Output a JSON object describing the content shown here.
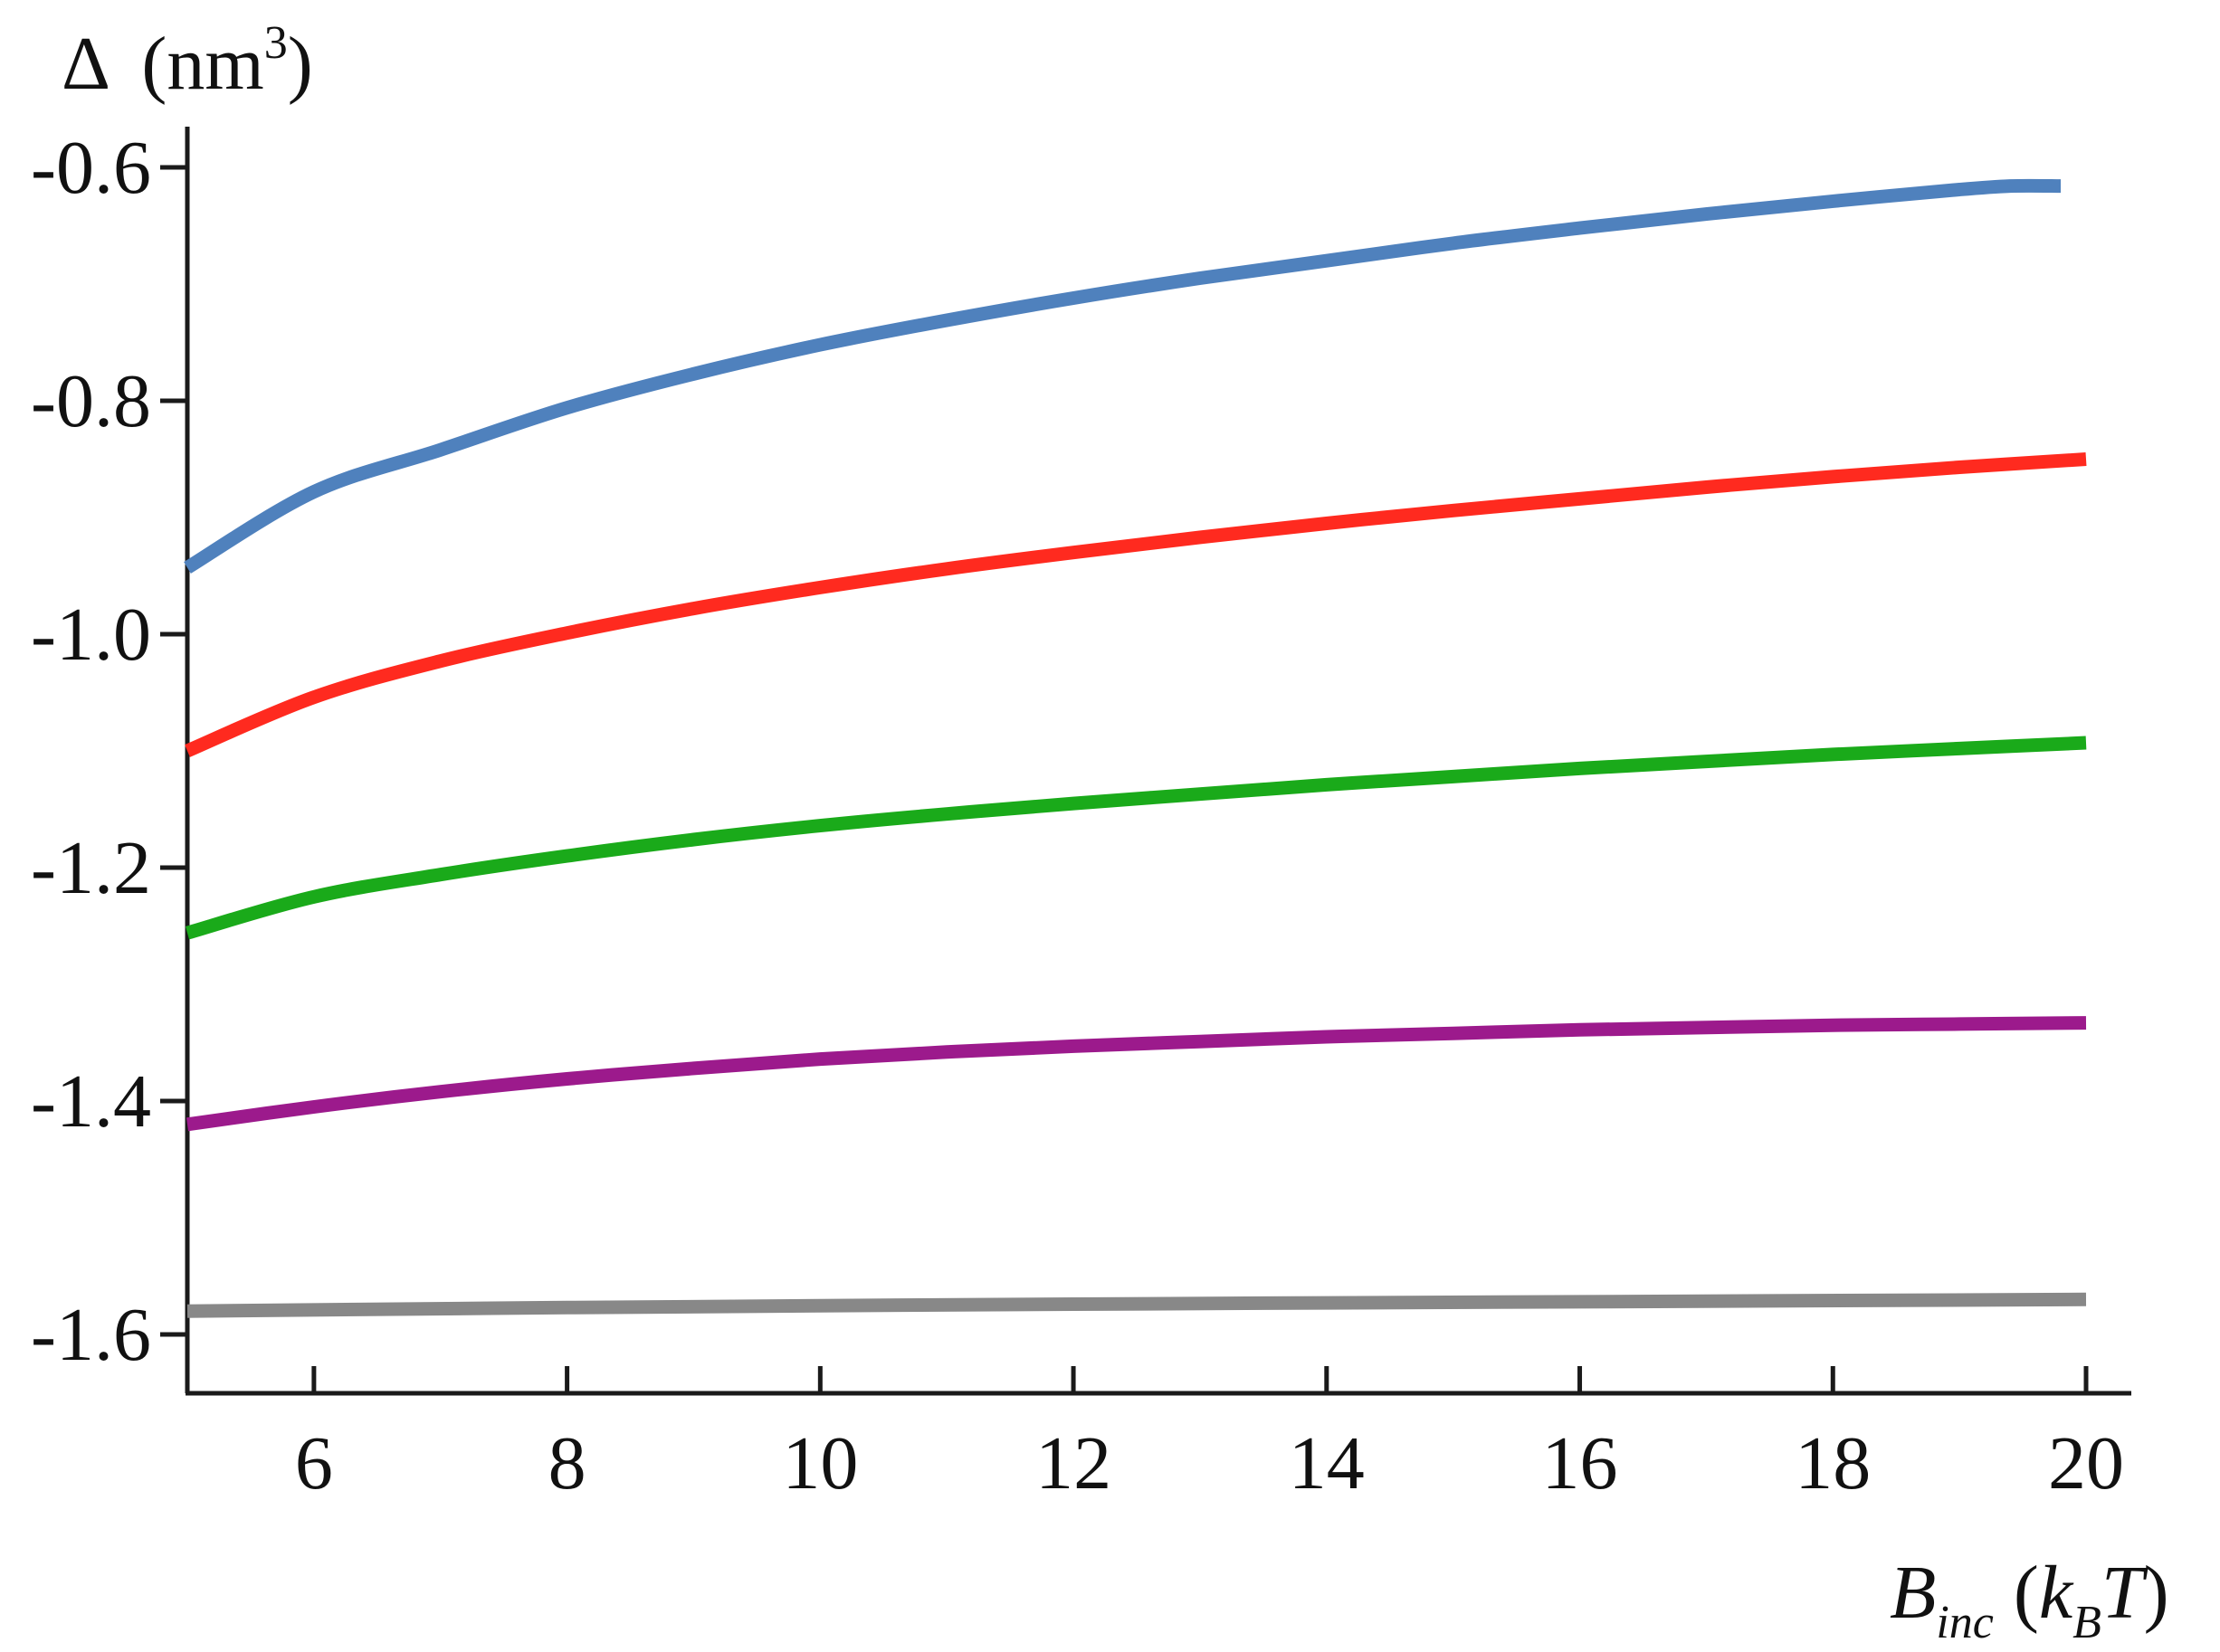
{
  "chart_data": {
    "type": "line",
    "title": "",
    "ylabel": {
      "symbol": "Δ",
      "unit_open": "(nm",
      "unit_sup": "3",
      "unit_close": ")"
    },
    "xlabel": {
      "base": "B",
      "sub": "inc",
      "paren_open": "(",
      "k": "k",
      "k_sub": "B",
      "T": "T",
      "paren_close": ")"
    },
    "xlim": [
      5,
      20
    ],
    "ylim": [
      -1.65,
      -0.57
    ],
    "xticks": [
      6,
      8,
      10,
      12,
      14,
      16,
      18,
      20
    ],
    "xtick_labels": [
      "6",
      "8",
      "10",
      "12",
      "14",
      "16",
      "18",
      "20"
    ],
    "yticks": [
      -0.6,
      -0.8,
      -1.0,
      -1.2,
      -1.4,
      -1.6
    ],
    "ytick_labels": [
      "-0.6",
      "-0.8",
      "-1.0",
      "-1.2",
      "-1.4",
      "-1.6"
    ],
    "grid": false,
    "legend": "none",
    "series": [
      {
        "color": "#4f81bd",
        "x": [
          5,
          6,
          7,
          8,
          9,
          10,
          11,
          12,
          13,
          14,
          15,
          16,
          17,
          18,
          19,
          19.4,
          19.8
        ],
        "y": [
          -0.943,
          -0.878,
          -0.842,
          -0.806,
          -0.777,
          -0.752,
          -0.731,
          -0.712,
          -0.695,
          -0.68,
          -0.665,
          -0.652,
          -0.64,
          -0.629,
          -0.619,
          -0.616,
          -0.616
        ]
      },
      {
        "color": "#ff2a1f",
        "x": [
          5,
          6,
          7,
          8,
          9,
          10,
          11,
          12,
          13,
          14,
          15,
          16,
          17,
          18,
          19,
          20
        ],
        "y": [
          -1.1,
          -1.054,
          -1.023,
          -0.999,
          -0.978,
          -0.96,
          -0.944,
          -0.93,
          -0.917,
          -0.905,
          -0.894,
          -0.884,
          -0.874,
          -0.865,
          -0.857,
          -0.85
        ]
      },
      {
        "color": "#1aaa1a",
        "x": [
          5,
          6,
          7,
          8,
          9,
          10,
          11,
          12,
          13,
          14,
          15,
          16,
          17,
          18,
          19,
          20
        ],
        "y": [
          -1.256,
          -1.225,
          -1.206,
          -1.19,
          -1.176,
          -1.164,
          -1.154,
          -1.145,
          -1.137,
          -1.129,
          -1.122,
          -1.115,
          -1.109,
          -1.103,
          -1.098,
          -1.093
        ]
      },
      {
        "color": "#9c1a8c",
        "x": [
          5,
          6,
          7,
          8,
          9,
          10,
          11,
          12,
          13,
          14,
          15,
          16,
          17,
          18,
          19,
          20
        ],
        "y": [
          -1.42,
          -1.405,
          -1.392,
          -1.381,
          -1.372,
          -1.364,
          -1.358,
          -1.353,
          -1.349,
          -1.345,
          -1.342,
          -1.339,
          -1.337,
          -1.335,
          -1.334,
          -1.333
        ]
      },
      {
        "color": "#888888",
        "x": [
          5,
          8,
          12,
          16,
          20
        ],
        "y": [
          -1.58,
          -1.577,
          -1.574,
          -1.572,
          -1.57
        ]
      }
    ]
  }
}
